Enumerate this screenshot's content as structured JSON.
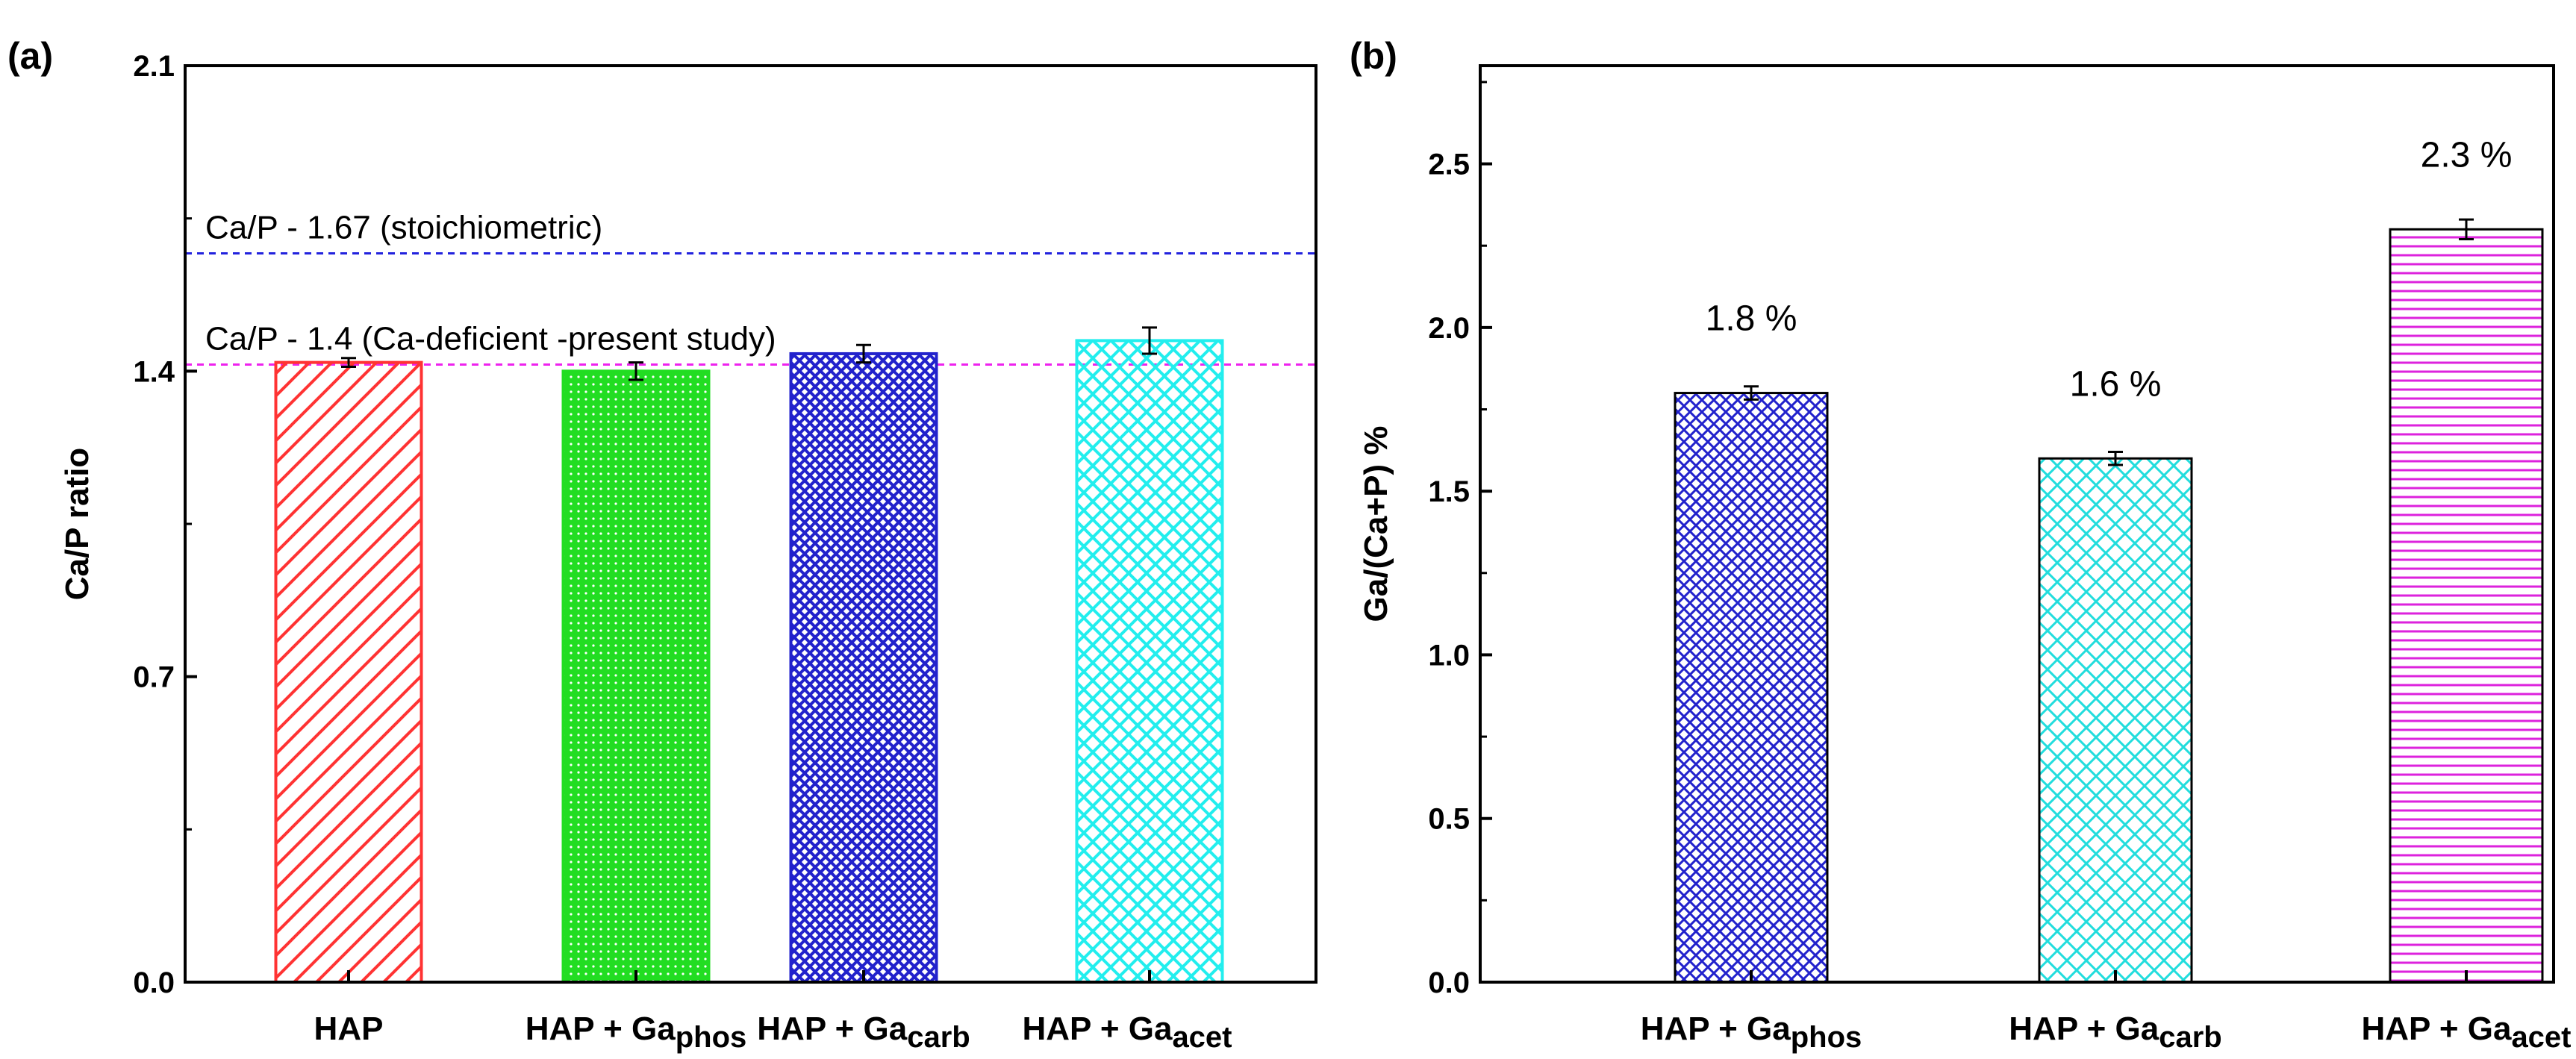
{
  "chart_data": [
    {
      "type": "bar",
      "panel_label": "(a)",
      "ylabel": "Ca/P ratio",
      "ylim": [
        0,
        2.1
      ],
      "yticks": [
        "0.0",
        "0.7",
        "1.4",
        "2.1"
      ],
      "categories": [
        {
          "base": "HAP",
          "sub": ""
        },
        {
          "base": "HAP + Ga",
          "sub": "phos"
        },
        {
          "base": "HAP + Ga",
          "sub": "carb"
        },
        {
          "base": "HAP + Ga",
          "sub": "acet"
        }
      ],
      "values": [
        1.42,
        1.4,
        1.44,
        1.47
      ],
      "errors": [
        0.01,
        0.02,
        0.02,
        0.03
      ],
      "colors": [
        "#ff3333",
        "#22dd22",
        "#2222cc",
        "#22eeee"
      ],
      "patterns": [
        "diagonal",
        "dots",
        "crosshatch",
        "crosshatch-wide"
      ],
      "reference_lines": [
        {
          "value": 1.67,
          "label": "Ca/P - 1.67 (stoichiometric)",
          "color": "#2222dd"
        },
        {
          "value": 1.415,
          "label": "Ca/P - 1.4 (Ca-deficient -present study)",
          "color": "#ee22ee"
        }
      ]
    },
    {
      "type": "bar",
      "panel_label": "(b)",
      "ylabel": "Ga/(Ca+P) %",
      "ylim": [
        0,
        2.8
      ],
      "yticks": [
        "0.0",
        "0.5",
        "1.0",
        "1.5",
        "2.0",
        "2.5"
      ],
      "categories": [
        {
          "base": "HAP + Ga",
          "sub": "phos"
        },
        {
          "base": "HAP + Ga",
          "sub": "carb"
        },
        {
          "base": "HAP + Ga",
          "sub": "acet"
        }
      ],
      "values": [
        1.8,
        1.6,
        2.3
      ],
      "errors": [
        0.02,
        0.02,
        0.03
      ],
      "data_labels": [
        "1.8 %",
        "1.6 %",
        "2.3 %"
      ],
      "colors": [
        "#2222cc",
        "#22dddd",
        "#dd22dd"
      ],
      "patterns": [
        "crosshatch",
        "crosshatch-wide",
        "horizontal"
      ]
    }
  ]
}
